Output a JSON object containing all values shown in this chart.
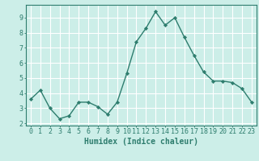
{
  "x": [
    0,
    1,
    2,
    3,
    4,
    5,
    6,
    7,
    8,
    9,
    10,
    11,
    12,
    13,
    14,
    15,
    16,
    17,
    18,
    19,
    20,
    21,
    22,
    23
  ],
  "y": [
    3.6,
    4.2,
    3.0,
    2.3,
    2.5,
    3.4,
    3.4,
    3.1,
    2.6,
    3.4,
    5.3,
    7.4,
    8.3,
    9.4,
    8.5,
    9.0,
    7.7,
    6.5,
    5.4,
    4.8,
    4.8,
    4.7,
    4.3,
    3.4
  ],
  "line_color": "#2e7d6e",
  "marker": "D",
  "marker_size": 2.2,
  "line_width": 1.0,
  "xlabel": "Humidex (Indice chaleur)",
  "xlabel_fontsize": 7,
  "xlim": [
    -0.5,
    23.5
  ],
  "ylim": [
    1.85,
    9.85
  ],
  "yticks": [
    2,
    3,
    4,
    5,
    6,
    7,
    8,
    9
  ],
  "xticks": [
    0,
    1,
    2,
    3,
    4,
    5,
    6,
    7,
    8,
    9,
    10,
    11,
    12,
    13,
    14,
    15,
    16,
    17,
    18,
    19,
    20,
    21,
    22,
    23
  ],
  "bg_color": "#cceee8",
  "grid_color": "#ffffff",
  "tick_color": "#2e7d6e",
  "axis_color": "#2e7d6e",
  "label_color": "#2e7d6e",
  "tick_fontsize": 6.0
}
